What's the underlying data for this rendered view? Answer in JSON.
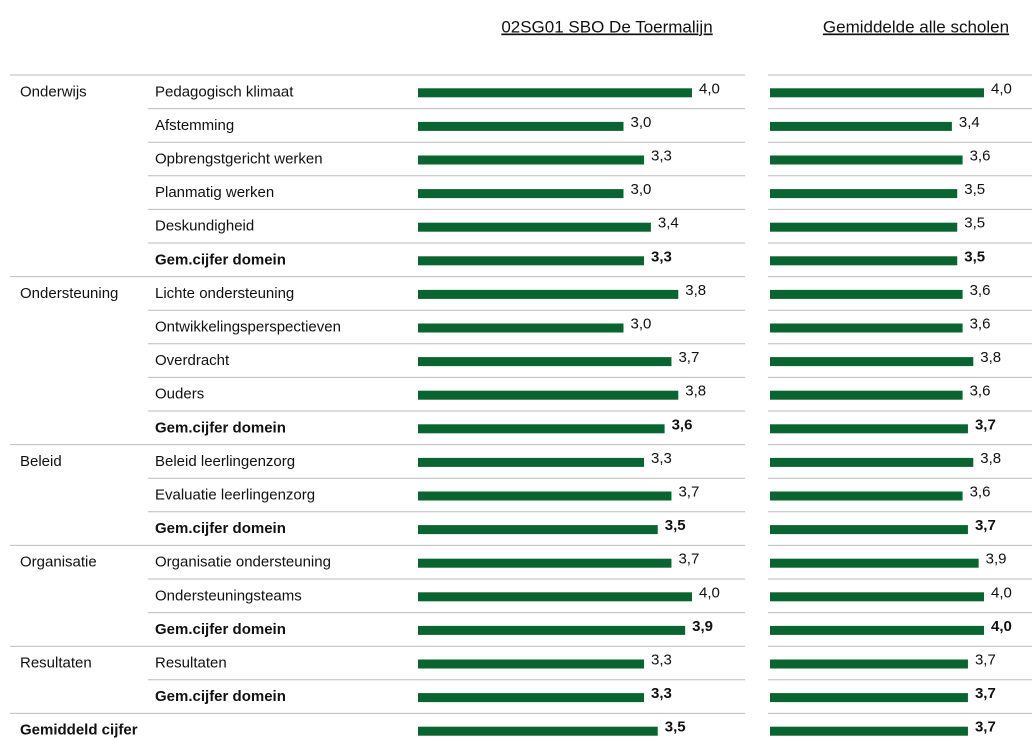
{
  "chart_data": {
    "type": "table-bar",
    "domains": [
      "Onderwijs",
      null,
      null,
      null,
      null,
      null,
      "Ondersteuning",
      null,
      null,
      null,
      null,
      "Beleid",
      null,
      null,
      "Organisatie",
      null,
      null,
      "Resultaten",
      null,
      "Gemiddeld cijfer"
    ],
    "categories": [
      "Pedagogisch klimaat",
      "Afstemming",
      "Opbrengstgericht werken",
      "Planmatig werken",
      "Deskundigheid",
      "Gem.cijfer domein",
      "Lichte ondersteuning",
      "Ontwikkelingsperspectieven",
      "Overdracht",
      "Ouders",
      "Gem.cijfer domein",
      "Beleid leerlingenzorg",
      "Evaluatie leerlingenzorg",
      "Gem.cijfer domein",
      "Organisatie ondersteuning",
      "Ondersteuningsteams",
      "Gem.cijfer domein",
      "Resultaten",
      "Gem.cijfer domein",
      null
    ],
    "emphasis": [
      false,
      false,
      false,
      false,
      false,
      true,
      false,
      false,
      false,
      false,
      true,
      false,
      false,
      true,
      false,
      false,
      true,
      false,
      true,
      true
    ],
    "xlim": [
      0,
      4
    ],
    "series": [
      {
        "name": "02SG01 SBO De Toermalijn",
        "color": "#0a6431",
        "values": [
          4.0,
          3.0,
          3.3,
          3.0,
          3.4,
          3.3,
          3.8,
          3.0,
          3.7,
          3.8,
          3.6,
          3.3,
          3.7,
          3.5,
          3.7,
          4.0,
          3.9,
          3.3,
          3.3,
          3.5
        ],
        "value_labels": [
          "4,0",
          "3,0",
          "3,3",
          "3,0",
          "3,4",
          "3,3",
          "3,8",
          "3,0",
          "3,7",
          "3,8",
          "3,6",
          "3,3",
          "3,7",
          "3,5",
          "3,7",
          "4,0",
          "3,9",
          "3,3",
          "3,3",
          "3,5"
        ]
      },
      {
        "name": "Gemiddelde alle scholen",
        "color": "#0a6431",
        "values": [
          4.0,
          3.4,
          3.6,
          3.5,
          3.5,
          3.5,
          3.6,
          3.6,
          3.8,
          3.6,
          3.7,
          3.8,
          3.6,
          3.7,
          3.9,
          4.0,
          4.0,
          3.7,
          3.7,
          3.7
        ],
        "value_labels": [
          "4,0",
          "3,4",
          "3,6",
          "3,5",
          "3,5",
          "3,5",
          "3,6",
          "3,6",
          "3,8",
          "3,6",
          "3,7",
          "3,8",
          "3,6",
          "3,7",
          "3,9",
          "4,0",
          "4,0",
          "3,7",
          "3,7",
          "3,7"
        ]
      }
    ]
  }
}
